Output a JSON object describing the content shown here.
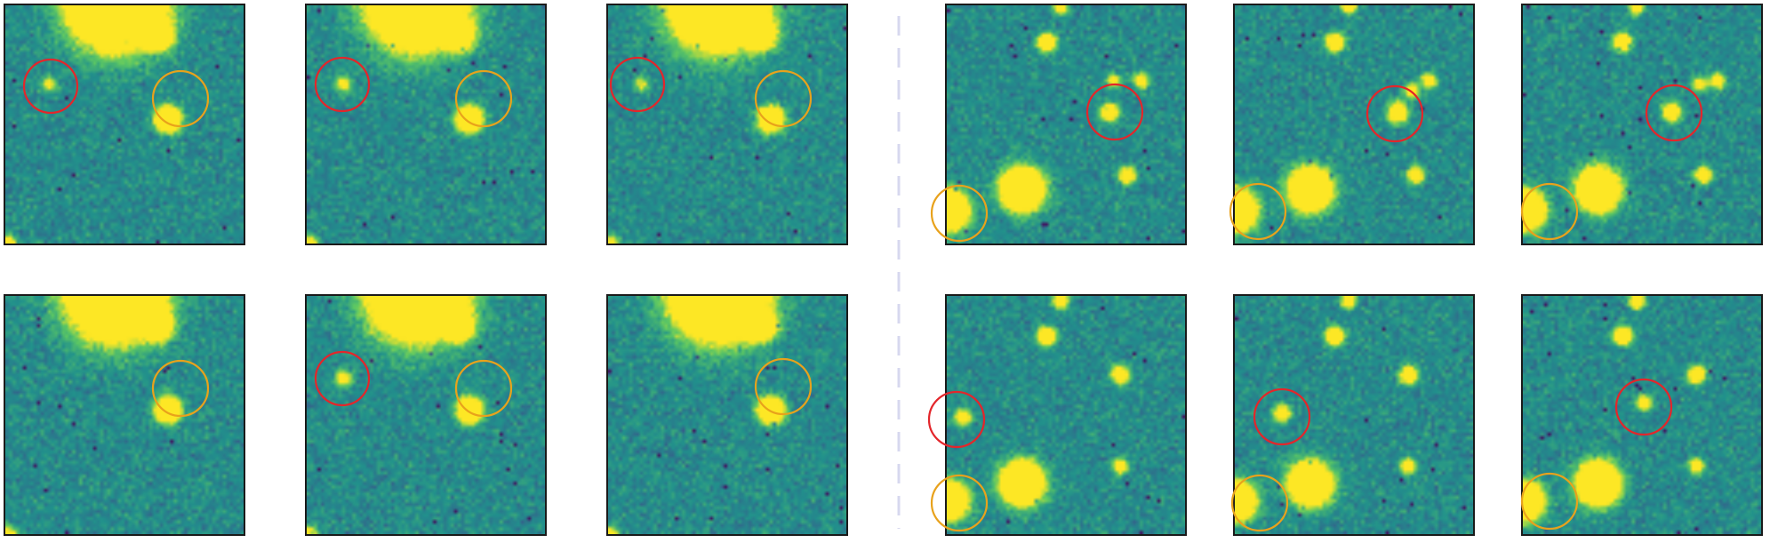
{
  "figure": {
    "grid": {
      "groups": 2,
      "rows": 2,
      "columns_per_group": 3
    },
    "colormap": "viridis",
    "colors": {
      "detection_circle": "#e3262b",
      "reference_circle": "#e8a21c",
      "divider": "#d7d8ef",
      "frame": "#1a1a1a"
    }
  }
}
